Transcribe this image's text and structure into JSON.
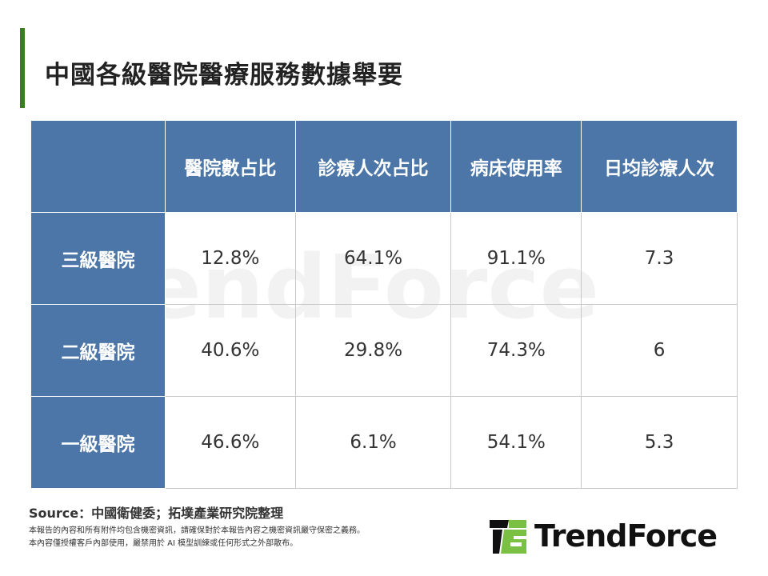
{
  "title": "中國各級醫院醫療服務數據舉要",
  "table": {
    "columns": [
      "醫院數占比",
      "診療人次占比",
      "病床使用率",
      "日均診療人次"
    ],
    "rows": [
      {
        "label": "三級醫院",
        "values": [
          "12.8%",
          "64.1%",
          "91.1%",
          "7.3"
        ]
      },
      {
        "label": "二級醫院",
        "values": [
          "40.6%",
          "29.8%",
          "74.3%",
          "6"
        ]
      },
      {
        "label": "一級醫院",
        "values": [
          "46.6%",
          "6.1%",
          "54.1%",
          "5.3"
        ]
      }
    ]
  },
  "watermark": "TrendForce",
  "source": "Source：中國衛健委；拓墣產業研究院整理",
  "disclaimer": [
    "本報告的內容和所有附件均包含機密資訊，請確保對於本報告內容之機密資訊嚴守保密之義務。",
    "本內容僅授權客戶內部使用，嚴禁用於 AI 模型訓練或任何形式之外部散布。"
  ],
  "logo": {
    "text": "TrendForce",
    "colors": {
      "black": "#111111",
      "green": "#7ac143"
    }
  },
  "colors": {
    "header": "#4b76a7",
    "accent_bar": "#3b7d23"
  }
}
